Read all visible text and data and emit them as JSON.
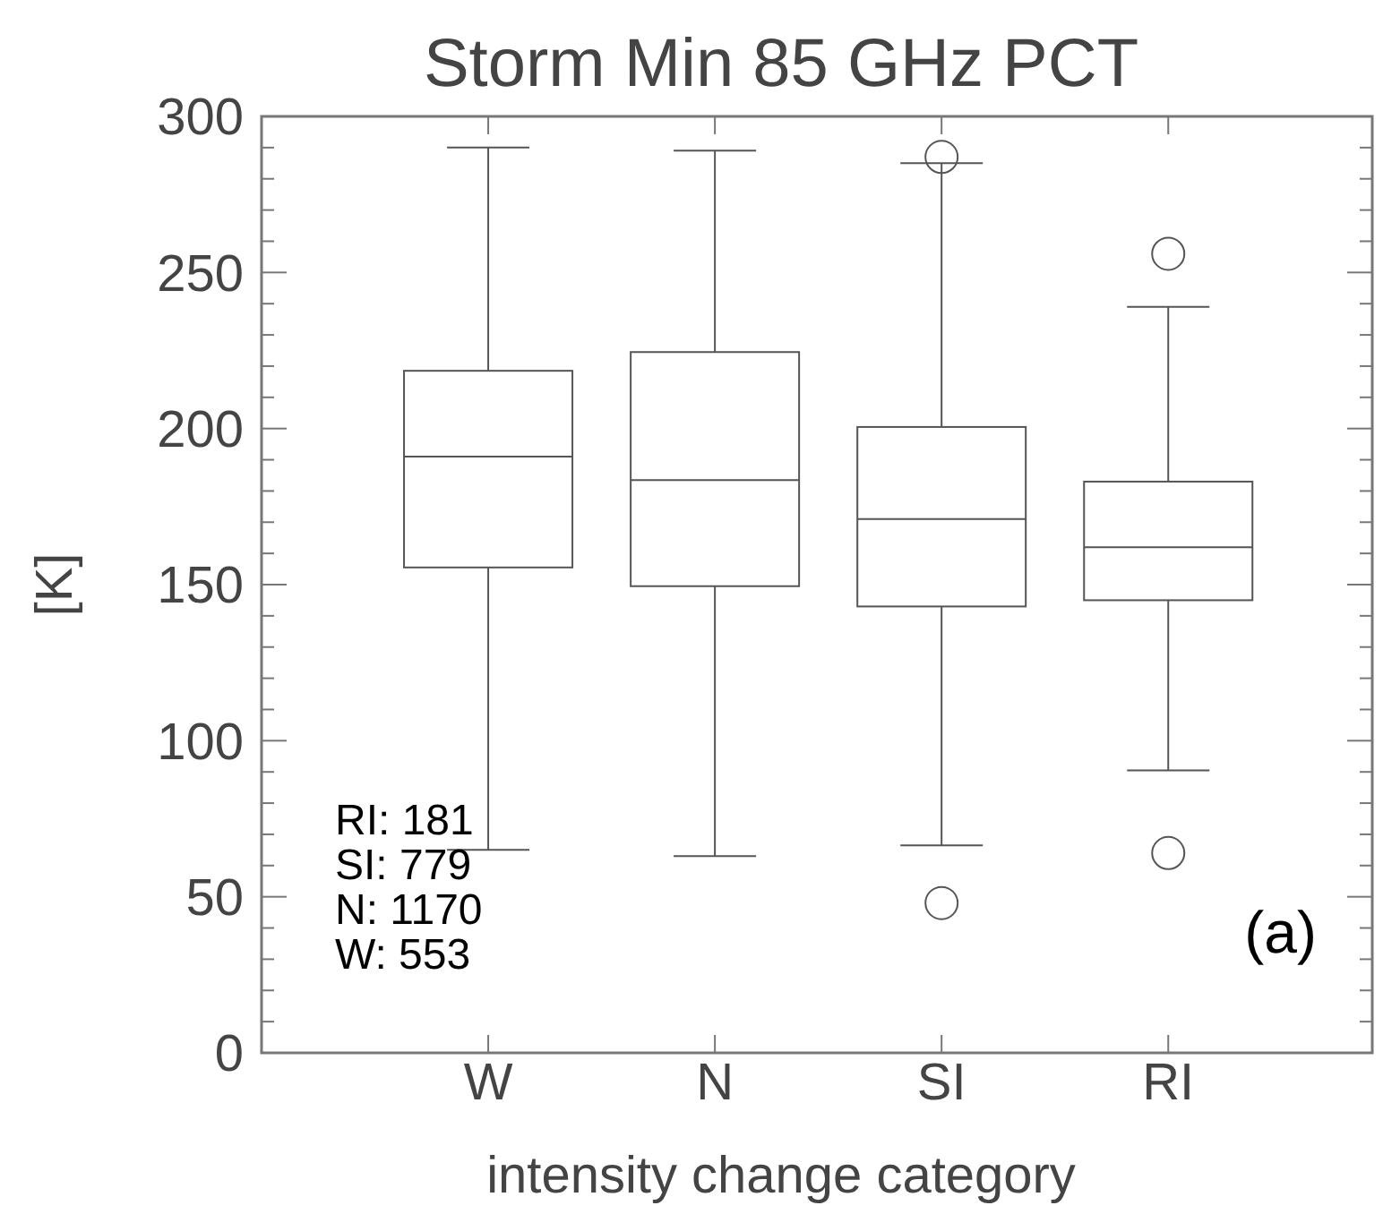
{
  "chart_data": {
    "type": "box",
    "title": "Storm Min 85 GHz PCT",
    "xlabel": "intensity change category",
    "ylabel": "[K]",
    "categories": [
      "W",
      "N",
      "SI",
      "RI"
    ],
    "boxes": [
      {
        "low": 65,
        "q1": 155.5,
        "median": 191,
        "q3": 218.5,
        "high": 290
      },
      {
        "low": 63,
        "q1": 149.5,
        "median": 183.5,
        "q3": 224.5,
        "high": 289
      },
      {
        "low": 66.5,
        "q1": 143,
        "median": 171,
        "q3": 200.5,
        "high": 285,
        "outliers": [
          287,
          48
        ]
      },
      {
        "low": 90.5,
        "q1": 145,
        "median": 162,
        "q3": 183,
        "high": 239,
        "outliers": [
          256,
          64
        ]
      }
    ],
    "color": "#555555",
    "ylim": [
      0,
      300
    ],
    "yticks": [
      0,
      {
        "value": 10,
        "label": null
      },
      {
        "value": 20,
        "label": null
      },
      {
        "value": 30,
        "label": null
      },
      {
        "value": 40,
        "label": null
      },
      50,
      {
        "value": 60,
        "label": null
      },
      {
        "value": 70,
        "label": null
      },
      {
        "value": 80,
        "label": null
      },
      {
        "value": 90,
        "label": null
      },
      100,
      {
        "value": 110,
        "label": null
      },
      {
        "value": 120,
        "label": null
      },
      {
        "value": 130,
        "label": null
      },
      {
        "value": 140,
        "label": null
      },
      150,
      {
        "value": 160,
        "label": null
      },
      {
        "value": 170,
        "label": null
      },
      {
        "value": 180,
        "label": null
      },
      {
        "value": 190,
        "label": null
      },
      200,
      {
        "value": 210,
        "label": null
      },
      {
        "value": 220,
        "label": null
      },
      {
        "value": 230,
        "label": null
      },
      {
        "value": 240,
        "label": null
      },
      250,
      {
        "value": 260,
        "label": null
      },
      {
        "value": 270,
        "label": null
      },
      {
        "value": 280,
        "label": null
      },
      {
        "value": 290,
        "label": null
      },
      300
    ],
    "annotations": [
      "RI: 181",
      "SI: 779",
      "N: 1170",
      "W: 553",
      "(a)"
    ]
  }
}
